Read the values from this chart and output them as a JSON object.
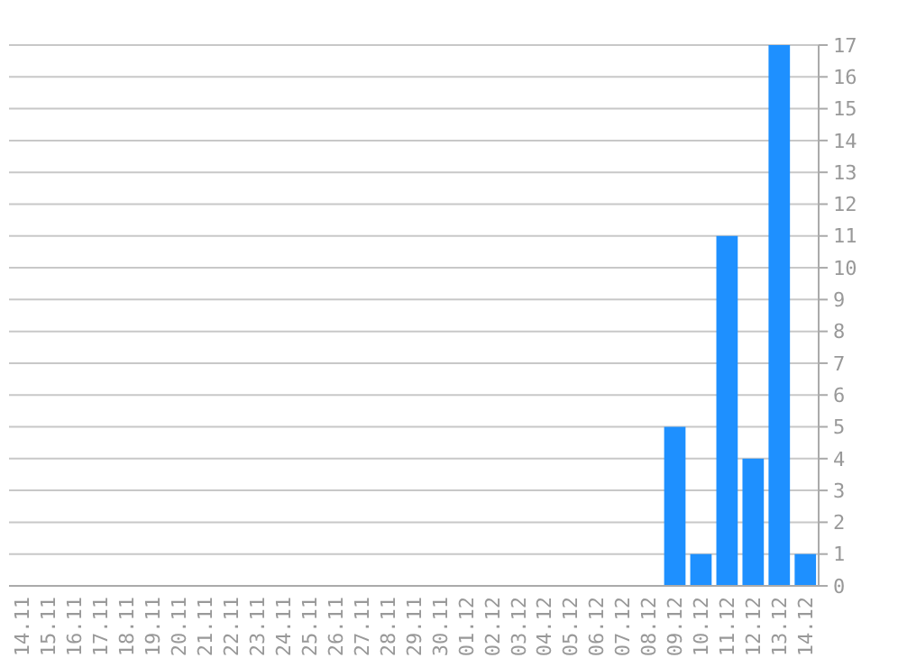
{
  "chart_data": {
    "type": "bar",
    "categories": [
      "14.11",
      "15.11",
      "16.11",
      "17.11",
      "18.11",
      "19.11",
      "20.11",
      "21.11",
      "22.11",
      "23.11",
      "24.11",
      "25.11",
      "26.11",
      "27.11",
      "28.11",
      "29.11",
      "30.11",
      "01.12",
      "02.12",
      "03.12",
      "04.12",
      "05.12",
      "06.12",
      "07.12",
      "08.12",
      "09.12",
      "10.12",
      "11.12",
      "12.12",
      "13.12",
      "14.12"
    ],
    "values": [
      0,
      0,
      0,
      0,
      0,
      0,
      0,
      0,
      0,
      0,
      0,
      0,
      0,
      0,
      0,
      0,
      0,
      0,
      0,
      0,
      0,
      0,
      0,
      0,
      0,
      5,
      1,
      11,
      4,
      17,
      1
    ],
    "color": "#1e90ff",
    "ylim": [
      0,
      17
    ],
    "yticks": [
      0,
      1,
      2,
      3,
      4,
      5,
      6,
      7,
      8,
      9,
      10,
      11,
      12,
      13,
      14,
      15,
      16,
      17
    ],
    "grid": "y"
  }
}
